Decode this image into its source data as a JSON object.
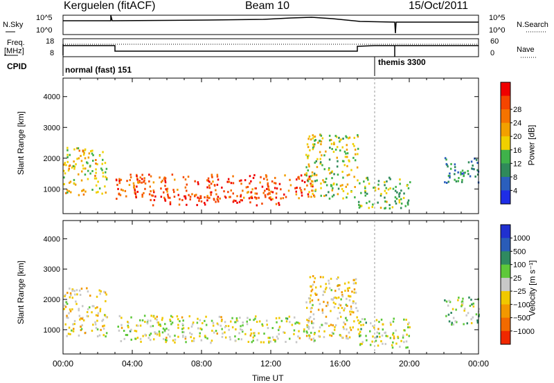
{
  "header": {
    "station": "Kerguelen (fitACF)",
    "beam": "Beam 10",
    "date": "15/Oct/2011"
  },
  "left_labels": {
    "nsky": "N.Sky",
    "freq_line1": "Freq.",
    "freq_line2": "[MHz]",
    "cpid": "CPID"
  },
  "right_labels": {
    "nsearch": "N.Search",
    "nave": "Nave"
  },
  "noise_panel": {
    "y_ticks": [
      "10^5",
      "10^0"
    ],
    "right_ticks": [
      "10^5",
      "10^0"
    ]
  },
  "freq_panel": {
    "y_ticks": [
      "18",
      "8"
    ],
    "right_ticks": [
      "60",
      "0"
    ]
  },
  "cpid_panel": {
    "modes": [
      {
        "label": "normal (fast) 151"
      },
      {
        "label": "themis 3300"
      }
    ]
  },
  "time_axis": {
    "title": "Time UT",
    "ticks": [
      "00:00",
      "04:00",
      "08:00",
      "12:00",
      "16:00",
      "20:00",
      "00:00"
    ]
  },
  "colors": {
    "power": [
      "#1e2de6",
      "#2b5fbd",
      "#2f8a5a",
      "#3fb24a",
      "#f0d000",
      "#f2a000",
      "#f57300",
      "#f54500",
      "#f00000"
    ],
    "velocity": [
      "#2030d0",
      "#2a5cb8",
      "#2f8a60",
      "#5ec83a",
      "#c8c8c8",
      "#f0c800",
      "#f29800",
      "#f26a00",
      "#f02800"
    ]
  },
  "chart_data": [
    {
      "type": "heatmap",
      "title": "Power",
      "ylabel": "Slant Range [km]",
      "xlabel": "",
      "y_ticks": [
        "1000",
        "2000",
        "3000",
        "4000"
      ],
      "ylim": [
        200,
        4600
      ],
      "xlim": [
        0,
        24
      ],
      "colorbar": {
        "label": "Power [dB]",
        "ticks": [
          "4",
          "8",
          "12",
          "16",
          "20",
          "24",
          "28"
        ],
        "range": [
          0,
          30
        ]
      },
      "regions": [
        {
          "t": [
            0.0,
            2.5
          ],
          "r": [
            800,
            2400
          ],
          "value": 16
        },
        {
          "t": [
            3.0,
            14.5
          ],
          "r": [
            700,
            1500
          ],
          "value": 24
        },
        {
          "t": [
            5.0,
            12.5
          ],
          "r": [
            500,
            800
          ],
          "value": 28
        },
        {
          "t": [
            14.0,
            17.0
          ],
          "r": [
            700,
            2800
          ],
          "value": 14
        },
        {
          "t": [
            17.0,
            20.0
          ],
          "r": [
            400,
            1400
          ],
          "value": 12
        },
        {
          "t": [
            22.0,
            24.0
          ],
          "r": [
            1200,
            2100
          ],
          "value": 8
        }
      ]
    },
    {
      "type": "heatmap",
      "title": "Velocity",
      "ylabel": "Slant Range [km]",
      "xlabel": "Time UT",
      "y_ticks": [
        "1000",
        "2000",
        "3000",
        "4000"
      ],
      "ylim": [
        200,
        4600
      ],
      "xlim": [
        0,
        24
      ],
      "colorbar": {
        "label": "Velocity [m s⁻¹]",
        "ticks": [
          "1000",
          "500",
          "100",
          "25",
          "−25",
          "−100",
          "−500",
          "−1000"
        ],
        "range": [
          -1200,
          1200
        ]
      },
      "regions": [
        {
          "t": [
            0.0,
            2.5
          ],
          "r": [
            800,
            2400
          ],
          "value": -150
        },
        {
          "t": [
            3.0,
            14.5
          ],
          "r": [
            600,
            1500
          ],
          "value": 0
        },
        {
          "t": [
            14.0,
            17.0
          ],
          "r": [
            700,
            2800
          ],
          "value": -200
        },
        {
          "t": [
            17.0,
            20.0
          ],
          "r": [
            400,
            1400
          ],
          "value": 0
        },
        {
          "t": [
            22.0,
            24.0
          ],
          "r": [
            1200,
            2100
          ],
          "value": 200
        }
      ]
    }
  ]
}
